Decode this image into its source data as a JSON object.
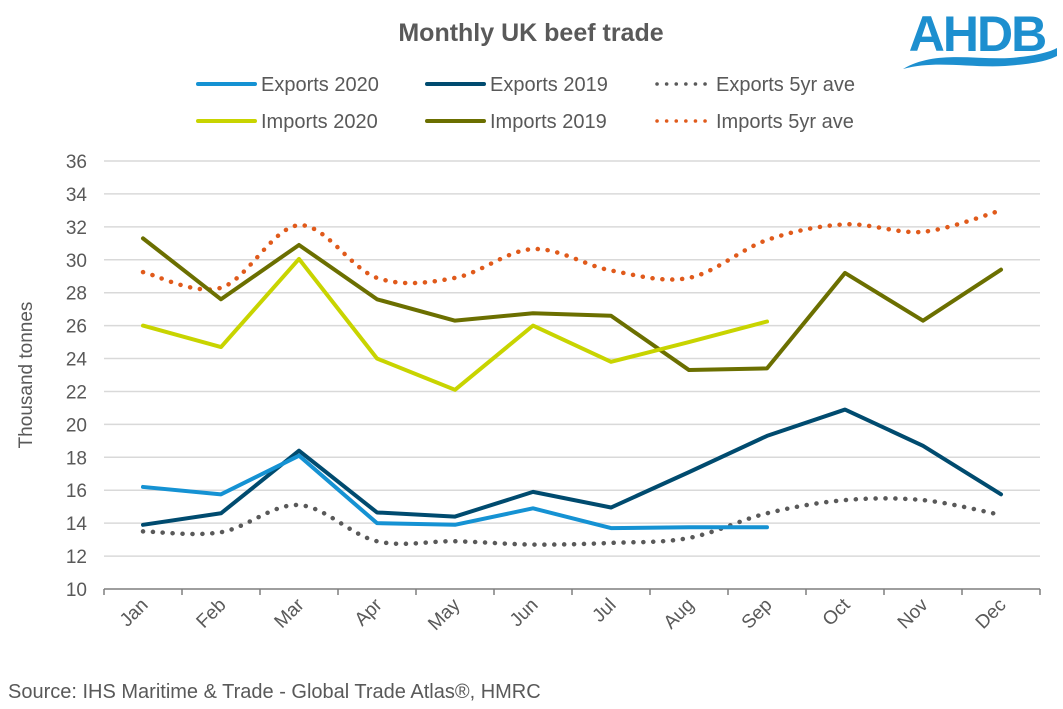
{
  "chart_data": {
    "type": "line",
    "title": "Monthly UK beef trade",
    "xlabel": "",
    "ylabel": "Thousand tonnes",
    "ylim": [
      10,
      36
    ],
    "yticks": [
      "10",
      "12",
      "14",
      "16",
      "18",
      "20",
      "22",
      "24",
      "26",
      "28",
      "30",
      "32",
      "34",
      "36"
    ],
    "grid": true,
    "legend_position": "top",
    "categories": [
      "Jan",
      "Feb",
      "Mar",
      "Apr",
      "May",
      "Jun",
      "Jul",
      "Aug",
      "Sep",
      "Oct",
      "Nov",
      "Dec"
    ],
    "series": [
      {
        "name": "Exports 2020",
        "color": "#1592d3",
        "style": "solid",
        "values": [
          16.2,
          15.75,
          18.1,
          14.0,
          13.9,
          14.9,
          13.7,
          13.75,
          13.75,
          null,
          null,
          null
        ]
      },
      {
        "name": "Exports 2019",
        "color": "#004b6f",
        "style": "solid",
        "values": [
          13.9,
          14.6,
          18.4,
          14.65,
          14.4,
          15.9,
          14.95,
          17.1,
          19.3,
          20.9,
          18.7,
          15.75
        ]
      },
      {
        "name": "Exports 5yr ave",
        "color": "#595959",
        "style": "dotted",
        "values": [
          13.5,
          13.45,
          15.1,
          12.9,
          12.9,
          12.7,
          12.8,
          13.1,
          14.6,
          15.4,
          15.4,
          14.5
        ]
      },
      {
        "name": "Imports 2020",
        "color": "#c8d400",
        "style": "solid",
        "values": [
          26.0,
          24.7,
          30.05,
          24.0,
          22.1,
          26.0,
          23.8,
          25.0,
          26.25,
          null,
          null,
          null
        ]
      },
      {
        "name": "Imports 2019",
        "color": "#6b6f00",
        "style": "solid",
        "values": [
          31.3,
          27.6,
          30.9,
          27.6,
          26.3,
          26.75,
          26.6,
          23.3,
          23.4,
          29.2,
          26.3,
          29.4
        ]
      },
      {
        "name": "Imports 5yr ave",
        "color": "#e05a1b",
        "style": "dotted",
        "values": [
          29.25,
          28.3,
          32.1,
          28.9,
          28.9,
          30.65,
          29.35,
          28.9,
          31.2,
          32.15,
          31.7,
          33.0
        ]
      }
    ]
  },
  "source": "Source: IHS Maritime & Trade - Global Trade Atlas®, HMRC",
  "logo": {
    "text": "AHDB",
    "color": "#1d8fcf"
  }
}
